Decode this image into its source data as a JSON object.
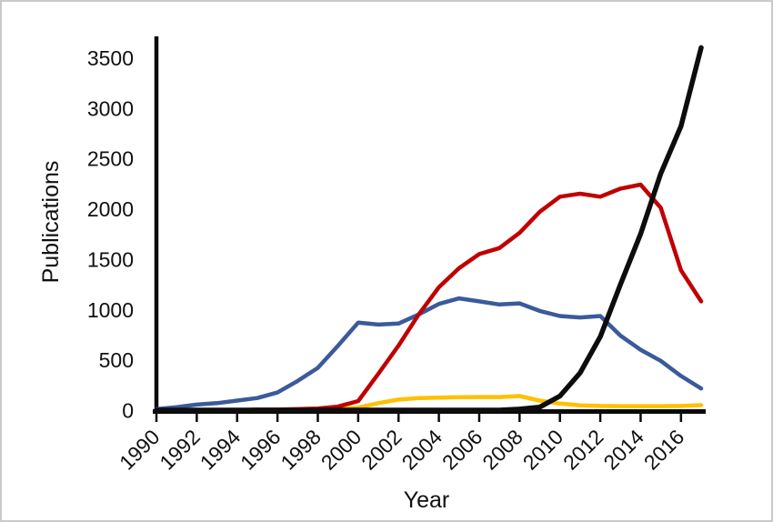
{
  "figure": {
    "background": "#ffffff",
    "border_color": "#c9c9c9"
  },
  "chart_data": {
    "type": "line",
    "title": "",
    "xlabel": "Year",
    "ylabel": "Publications",
    "xlim": [
      1990,
      2017
    ],
    "ylim": [
      0,
      3500
    ],
    "grid": false,
    "legend": "none",
    "axis_color": "#0a0a0a",
    "xticks": [
      1990,
      1992,
      1994,
      1996,
      1998,
      2000,
      2002,
      2004,
      2006,
      2008,
      2010,
      2012,
      2014,
      2016
    ],
    "yticks": [
      0,
      500,
      1000,
      1500,
      2000,
      2500,
      3000,
      3500
    ],
    "x": [
      1990,
      1991,
      1992,
      1993,
      1994,
      1995,
      1996,
      1997,
      1998,
      1999,
      2000,
      2001,
      2002,
      2003,
      2004,
      2005,
      2006,
      2007,
      2008,
      2009,
      2010,
      2011,
      2012,
      2013,
      2014,
      2015,
      2016,
      2017
    ],
    "series": [
      {
        "name": "blue",
        "color": "#3A5A9B",
        "values": [
          10,
          30,
          55,
          70,
          95,
          120,
          175,
          290,
          420,
          640,
          870,
          850,
          860,
          950,
          1055,
          1110,
          1080,
          1050,
          1060,
          985,
          935,
          920,
          935,
          740,
          600,
          490,
          340,
          215
        ]
      },
      {
        "name": "yellow",
        "color": "#FFC000",
        "values": [
          0,
          0,
          0,
          0,
          0,
          0,
          0,
          0,
          5,
          10,
          25,
          70,
          105,
          120,
          125,
          128,
          130,
          130,
          140,
          95,
          65,
          48,
          42,
          40,
          40,
          40,
          42,
          50
        ]
      },
      {
        "name": "red",
        "color": "#C00000",
        "values": [
          0,
          0,
          0,
          0,
          0,
          5,
          5,
          10,
          15,
          35,
          90,
          360,
          640,
          950,
          1220,
          1410,
          1550,
          1610,
          1760,
          1970,
          2120,
          2150,
          2120,
          2200,
          2240,
          2010,
          1390,
          1080
        ]
      },
      {
        "name": "black",
        "color": "#0D0D0D",
        "values": [
          0,
          0,
          0,
          0,
          0,
          0,
          0,
          0,
          0,
          0,
          0,
          0,
          0,
          0,
          0,
          0,
          0,
          0,
          10,
          30,
          140,
          370,
          730,
          1250,
          1750,
          2350,
          2820,
          3600
        ]
      }
    ]
  }
}
